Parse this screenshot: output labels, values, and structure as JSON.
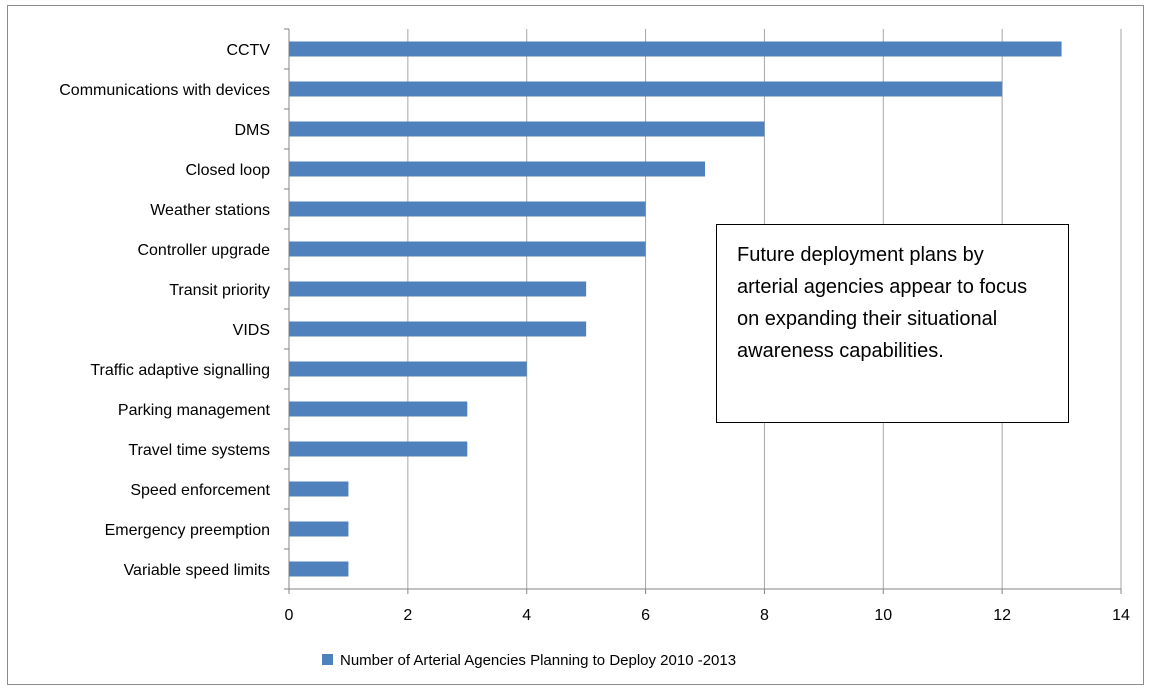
{
  "chart_data": {
    "type": "bar",
    "orientation": "horizontal",
    "categories": [
      "CCTV",
      "Communications with devices",
      "DMS",
      "Closed loop",
      "Weather stations",
      "Controller upgrade",
      "Transit priority",
      "VIDS",
      "Traffic adaptive signalling",
      "Parking management",
      "Travel time systems",
      "Speed enforcement",
      "Emergency preemption",
      "Variable speed limits"
    ],
    "series": [
      {
        "name": "Number of Arterial Agencies Planning to Deploy 2010 -2013",
        "values": [
          13,
          12,
          8,
          7,
          6,
          6,
          5,
          5,
          4,
          3,
          3,
          1,
          1,
          1
        ]
      }
    ],
    "xlim": [
      0,
      14
    ],
    "xticks": [
      0,
      2,
      4,
      6,
      8,
      10,
      12,
      14
    ],
    "grid": "vertical",
    "legend": "bottom",
    "bar_color": "#4f81bd"
  },
  "annotation": {
    "text": "Future deployment plans by arterial agencies appear to focus on expanding their situational awareness capabilities."
  }
}
